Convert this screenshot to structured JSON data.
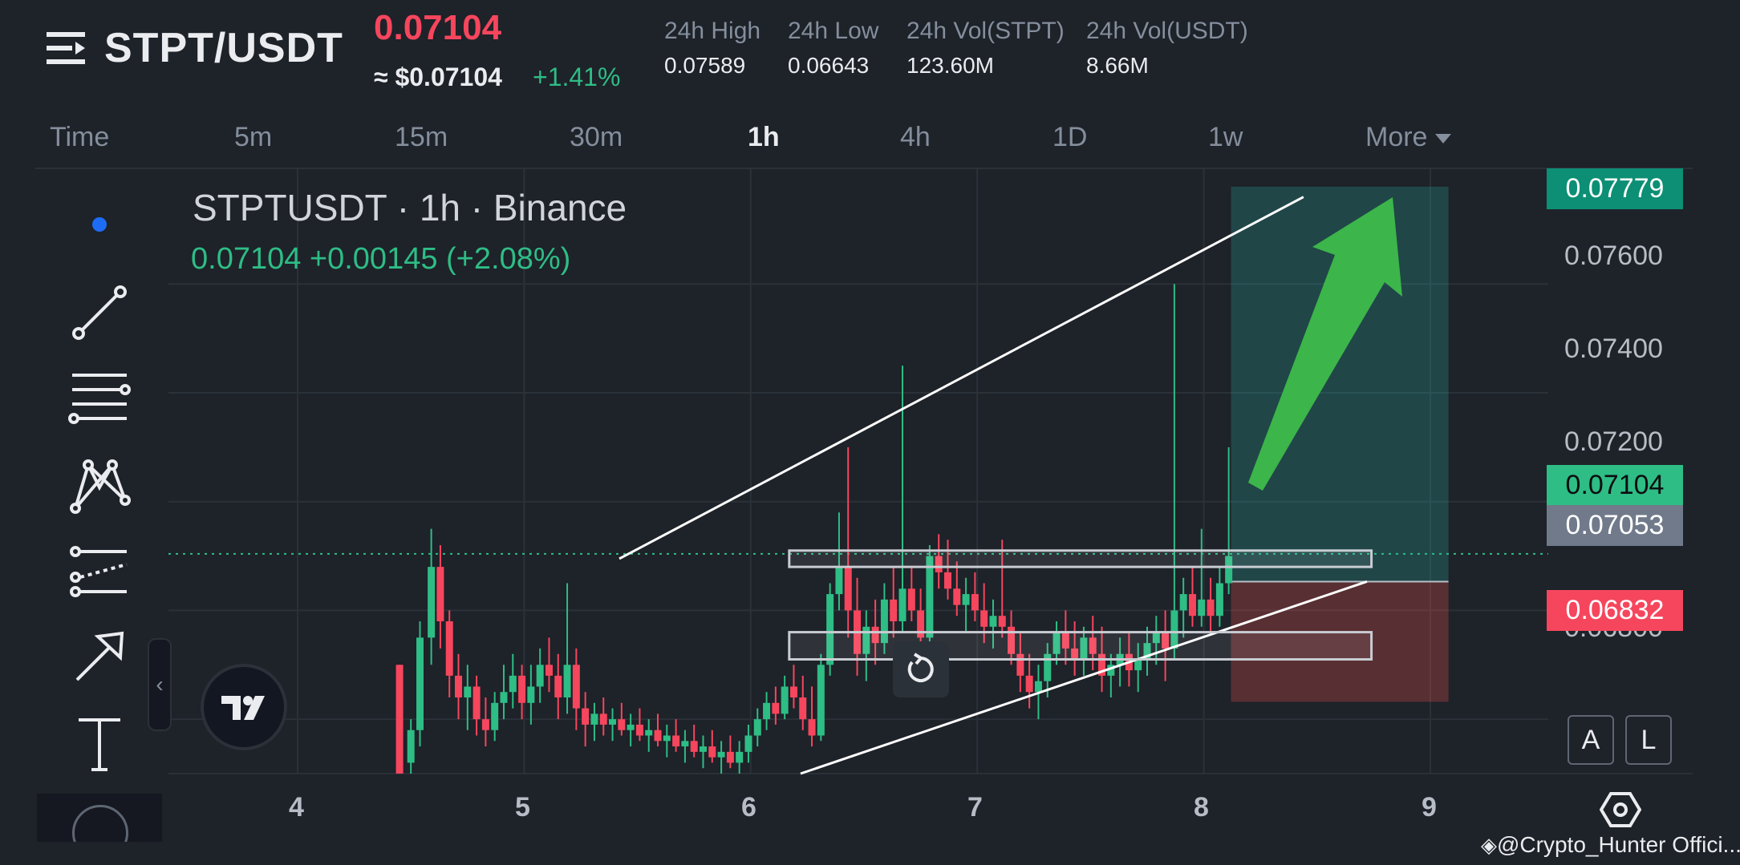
{
  "header": {
    "pair": "STPT/USDT",
    "last_price": "0.07104",
    "fiat_price": "≈ $0.07104",
    "change_pct": "+1.41%",
    "stats": [
      {
        "label": "24h High",
        "value": "0.07589"
      },
      {
        "label": "24h Low",
        "value": "0.06643"
      },
      {
        "label": "24h Vol(STPT)",
        "value": "123.60M"
      },
      {
        "label": "24h Vol(USDT)",
        "value": "8.66M"
      }
    ]
  },
  "timeframes": {
    "items": [
      "Time",
      "5m",
      "15m",
      "30m",
      "1h",
      "4h",
      "1D",
      "1w"
    ],
    "active": "1h",
    "more_label": "More"
  },
  "chart": {
    "title": "STPTUSDT · 1h · Binance",
    "ohlc": "0.07104  +0.00145 (+2.08%)",
    "price_axis": [
      "0.07600",
      "0.07400",
      "0.07200",
      "0.06800"
    ],
    "time_axis": [
      "4",
      "5",
      "6",
      "7",
      "8",
      "9"
    ],
    "tags": {
      "target": "0.07779",
      "current": "0.07104",
      "entry": "0.07053",
      "stop": "0.06832"
    },
    "colors": {
      "up": "#2ebd85",
      "down": "#f6465d",
      "background": "#1e2229",
      "grid": "#2b3139"
    }
  },
  "chart_data": {
    "type": "candlestick",
    "title": "STPTUSDT · 1h · Binance",
    "x_ticks": [
      "4",
      "5",
      "6",
      "7",
      "8",
      "9"
    ],
    "ylim": [
      0.067,
      0.0782
    ],
    "last": 0.07104,
    "annotations": {
      "target": 0.07779,
      "entry": 0.07053,
      "stop": 0.06832,
      "resistance_zone": [
        0.0708,
        0.0711
      ],
      "support_zone": [
        0.0691,
        0.0696
      ]
    },
    "trendlines": [
      {
        "from": [
          5.42,
          0.07095
        ],
        "to": [
          8.44,
          0.0776
        ]
      },
      {
        "from": [
          6.22,
          0.067
        ],
        "to": [
          8.72,
          0.07053
        ]
      }
    ],
    "candles": [
      [
        4.45,
        0.069,
        0.069,
        0.067,
        0.067
      ],
      [
        4.5,
        0.0672,
        0.068,
        0.067,
        0.0678
      ],
      [
        4.54,
        0.0678,
        0.0698,
        0.0675,
        0.0695
      ],
      [
        4.59,
        0.0695,
        0.0715,
        0.069,
        0.0708
      ],
      [
        4.63,
        0.0708,
        0.0712,
        0.0693,
        0.0698
      ],
      [
        4.67,
        0.0698,
        0.07,
        0.0684,
        0.0688
      ],
      [
        4.71,
        0.0688,
        0.0692,
        0.068,
        0.0684
      ],
      [
        4.75,
        0.0684,
        0.069,
        0.0678,
        0.0686
      ],
      [
        4.79,
        0.0686,
        0.0688,
        0.0677,
        0.068
      ],
      [
        4.83,
        0.068,
        0.0684,
        0.0675,
        0.0678
      ],
      [
        4.87,
        0.0678,
        0.0685,
        0.0676,
        0.0683
      ],
      [
        4.91,
        0.0683,
        0.069,
        0.068,
        0.0685
      ],
      [
        4.95,
        0.0685,
        0.0692,
        0.0682,
        0.0688
      ],
      [
        4.99,
        0.0688,
        0.069,
        0.068,
        0.0683
      ],
      [
        5.03,
        0.0683,
        0.069,
        0.0679,
        0.0686
      ],
      [
        5.07,
        0.0686,
        0.0693,
        0.0683,
        0.069
      ],
      [
        5.11,
        0.069,
        0.0695,
        0.0685,
        0.0688
      ],
      [
        5.15,
        0.0688,
        0.0692,
        0.068,
        0.0684
      ],
      [
        5.19,
        0.0684,
        0.0705,
        0.0681,
        0.069
      ],
      [
        5.23,
        0.069,
        0.0693,
        0.0678,
        0.0682
      ],
      [
        5.27,
        0.0682,
        0.0685,
        0.0675,
        0.0679
      ],
      [
        5.31,
        0.0679,
        0.0683,
        0.0676,
        0.0681
      ],
      [
        5.35,
        0.0681,
        0.0684,
        0.0677,
        0.0679
      ],
      [
        5.39,
        0.0679,
        0.0682,
        0.0676,
        0.068
      ],
      [
        5.43,
        0.068,
        0.0683,
        0.0677,
        0.0678
      ],
      [
        5.47,
        0.0678,
        0.0681,
        0.0675,
        0.0679
      ],
      [
        5.51,
        0.0679,
        0.0682,
        0.0676,
        0.0677
      ],
      [
        5.55,
        0.0677,
        0.068,
        0.0674,
        0.0678
      ],
      [
        5.59,
        0.0678,
        0.0681,
        0.0675,
        0.0676
      ],
      [
        5.63,
        0.0676,
        0.0679,
        0.0673,
        0.0677
      ],
      [
        5.67,
        0.0677,
        0.068,
        0.0674,
        0.0675
      ],
      [
        5.71,
        0.0675,
        0.0678,
        0.0672,
        0.0676
      ],
      [
        5.75,
        0.0676,
        0.0679,
        0.0673,
        0.0674
      ],
      [
        5.79,
        0.0674,
        0.0677,
        0.0671,
        0.0675
      ],
      [
        5.83,
        0.0675,
        0.0678,
        0.0672,
        0.0673
      ],
      [
        5.87,
        0.0673,
        0.0676,
        0.067,
        0.0674
      ],
      [
        5.91,
        0.0674,
        0.0677,
        0.0671,
        0.0672
      ],
      [
        5.95,
        0.0672,
        0.0676,
        0.067,
        0.0674
      ],
      [
        5.99,
        0.0674,
        0.0679,
        0.0672,
        0.0677
      ],
      [
        6.03,
        0.0677,
        0.0682,
        0.0675,
        0.068
      ],
      [
        6.07,
        0.068,
        0.0685,
        0.0678,
        0.0683
      ],
      [
        6.11,
        0.0683,
        0.0686,
        0.0679,
        0.0681
      ],
      [
        6.15,
        0.0681,
        0.0688,
        0.068,
        0.0686
      ],
      [
        6.19,
        0.0686,
        0.069,
        0.0682,
        0.0684
      ],
      [
        6.23,
        0.0684,
        0.0688,
        0.0678,
        0.068
      ],
      [
        6.27,
        0.068,
        0.0686,
        0.0675,
        0.0677
      ],
      [
        6.31,
        0.0677,
        0.0692,
        0.0676,
        0.069
      ],
      [
        6.35,
        0.069,
        0.0705,
        0.0688,
        0.0703
      ],
      [
        6.39,
        0.0703,
        0.0718,
        0.07,
        0.0708
      ],
      [
        6.43,
        0.0708,
        0.073,
        0.0695,
        0.07
      ],
      [
        6.47,
        0.07,
        0.0706,
        0.0688,
        0.0692
      ],
      [
        6.51,
        0.0692,
        0.07,
        0.0687,
        0.0697
      ],
      [
        6.55,
        0.0697,
        0.0702,
        0.069,
        0.0694
      ],
      [
        6.59,
        0.0694,
        0.0705,
        0.0692,
        0.0702
      ],
      [
        6.63,
        0.0702,
        0.0708,
        0.0695,
        0.0698
      ],
      [
        6.67,
        0.0698,
        0.0745,
        0.0696,
        0.0704
      ],
      [
        6.71,
        0.0704,
        0.0708,
        0.0698,
        0.07
      ],
      [
        6.75,
        0.07,
        0.0704,
        0.0692,
        0.0695
      ],
      [
        6.79,
        0.0695,
        0.0712,
        0.0693,
        0.071
      ],
      [
        6.83,
        0.071,
        0.0714,
        0.0704,
        0.0707
      ],
      [
        6.87,
        0.0707,
        0.0713,
        0.0702,
        0.0704
      ],
      [
        6.91,
        0.0704,
        0.0709,
        0.0699,
        0.0701
      ],
      [
        6.95,
        0.0701,
        0.0706,
        0.0696,
        0.0703
      ],
      [
        6.99,
        0.0703,
        0.0707,
        0.0698,
        0.07
      ],
      [
        7.03,
        0.07,
        0.0705,
        0.0694,
        0.0697
      ],
      [
        7.07,
        0.0697,
        0.0702,
        0.0693,
        0.0699
      ],
      [
        7.11,
        0.0699,
        0.0713,
        0.0695,
        0.0697
      ],
      [
        7.15,
        0.0697,
        0.07,
        0.069,
        0.0692
      ],
      [
        7.19,
        0.0692,
        0.0696,
        0.0685,
        0.0688
      ],
      [
        7.23,
        0.0688,
        0.0692,
        0.0682,
        0.0685
      ],
      [
        7.27,
        0.0685,
        0.069,
        0.068,
        0.0687
      ],
      [
        7.31,
        0.0687,
        0.0694,
        0.0684,
        0.0692
      ],
      [
        7.35,
        0.0692,
        0.0698,
        0.069,
        0.0696
      ],
      [
        7.39,
        0.0696,
        0.07,
        0.069,
        0.0693
      ],
      [
        7.43,
        0.0693,
        0.0698,
        0.0688,
        0.0691
      ],
      [
        7.47,
        0.0691,
        0.0697,
        0.0688,
        0.0695
      ],
      [
        7.51,
        0.0695,
        0.0699,
        0.0689,
        0.0692
      ],
      [
        7.55,
        0.0692,
        0.0697,
        0.0685,
        0.0688
      ],
      [
        7.59,
        0.0688,
        0.0692,
        0.0684,
        0.069
      ],
      [
        7.63,
        0.069,
        0.0695,
        0.0686,
        0.0692
      ],
      [
        7.67,
        0.0692,
        0.0696,
        0.0686,
        0.0689
      ],
      [
        7.71,
        0.0689,
        0.0694,
        0.0685,
        0.0691
      ],
      [
        7.75,
        0.0691,
        0.0697,
        0.0688,
        0.0694
      ],
      [
        7.79,
        0.0694,
        0.0699,
        0.069,
        0.0696
      ],
      [
        7.83,
        0.0696,
        0.07,
        0.0687,
        0.0693
      ],
      [
        7.87,
        0.0693,
        0.076,
        0.0691,
        0.07
      ],
      [
        7.91,
        0.07,
        0.0706,
        0.0695,
        0.0703
      ],
      [
        7.95,
        0.0703,
        0.0708,
        0.0697,
        0.0699
      ],
      [
        7.99,
        0.0699,
        0.0715,
        0.0697,
        0.0702
      ],
      [
        8.03,
        0.0702,
        0.0706,
        0.0696,
        0.0699
      ],
      [
        8.07,
        0.0699,
        0.0708,
        0.0697,
        0.0705
      ],
      [
        8.11,
        0.0705,
        0.073,
        0.0703,
        0.071
      ]
    ]
  },
  "toolbar": {
    "collapse_label": "‹",
    "scale_buttons": [
      "A",
      "L"
    ],
    "tools": [
      "dot-tool-icon",
      "trendline-tool-icon",
      "fib-lines-tool-icon",
      "pattern-tool-icon",
      "channel-tool-icon",
      "arrow-tool-icon",
      "text-tool-icon"
    ]
  },
  "watermark": "@Crypto_Hunter Offici..."
}
